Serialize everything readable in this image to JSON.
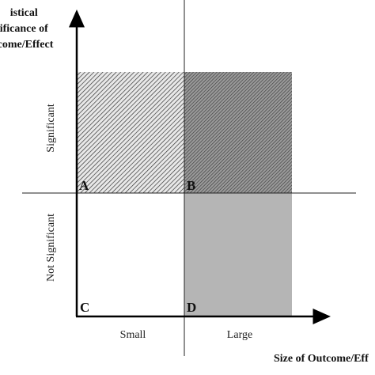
{
  "y_axis_title": {
    "lines": [
      "istical",
      "ificance of",
      "come/Effect"
    ]
  },
  "x_axis_title": "Size of Outcome/Eff",
  "x_categories": {
    "small": "Small",
    "large": "Large"
  },
  "y_categories": {
    "significant": "Significant",
    "not_significant": "Not Significant"
  },
  "quadrants": {
    "a": {
      "letter": "A",
      "fill": "hatched-light"
    },
    "b": {
      "letter": "B",
      "fill": "hatched-dark"
    },
    "c": {
      "letter": "C",
      "fill": "none"
    },
    "d": {
      "letter": "D",
      "fill": "grey"
    }
  },
  "colors": {
    "axis": "#000000",
    "divider": "#222222",
    "grey_fill": "#b5b5b5",
    "hatch_light_bg": "#e8e8e8",
    "hatch_dark_bg": "#8f8f8f"
  }
}
